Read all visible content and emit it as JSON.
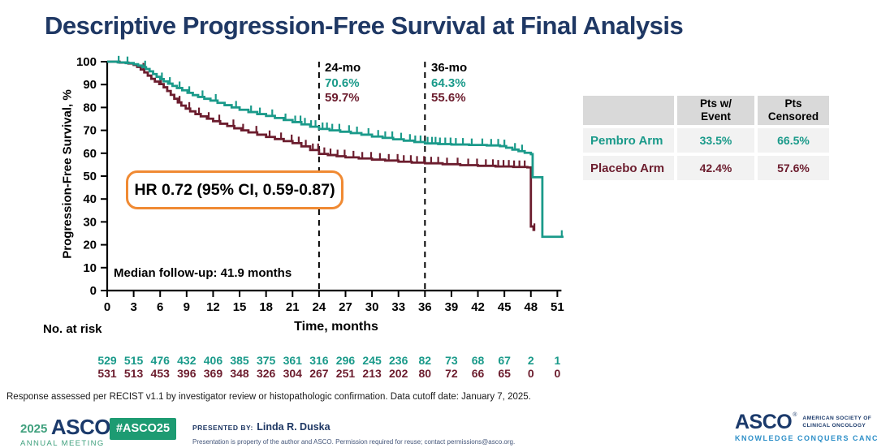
{
  "title": "Descriptive Progression-Free Survival at Final Analysis",
  "colors": {
    "title_navy": "#1F3864",
    "pembro_teal": "#1A9A8A",
    "placebo_maroon": "#6C1D2E",
    "hr_box_orange": "#F08A33",
    "table_header_gray": "#D9D9D9",
    "table_row_gray": "#F2F2F2",
    "footer_green": "#1D9B72",
    "asco_navy": "#1B3A6B",
    "tagline_blue": "#2D8FC8"
  },
  "chart_data": {
    "type": "line",
    "subtype": "kaplan-meier-step",
    "title": "",
    "xlabel": "Time, months",
    "ylabel": "Progression-Free Survival, %",
    "xlim": [
      0,
      51
    ],
    "ylim": [
      0,
      100
    ],
    "xticks": [
      0,
      3,
      6,
      9,
      12,
      15,
      18,
      21,
      24,
      27,
      30,
      33,
      36,
      39,
      42,
      45,
      48,
      51
    ],
    "yticks": [
      0,
      10,
      20,
      30,
      40,
      50,
      60,
      70,
      80,
      90,
      100
    ],
    "grid": false,
    "legend_position": "none",
    "hr_text": "HR 0.72 (95% CI, 0.59-0.87)",
    "median_followup": "Median follow-up: 41.9 months",
    "timepoints": [
      {
        "x": 24,
        "label": "24-mo",
        "pembro": "70.6%",
        "placebo": "59.7%"
      },
      {
        "x": 36,
        "label": "36-mo",
        "pembro": "64.3%",
        "placebo": "55.6%"
      }
    ],
    "series": [
      {
        "name": "Pembro Arm",
        "color": "#1A9A8A",
        "steps": [
          [
            0,
            100
          ],
          [
            1.2,
            99.7
          ],
          [
            2.1,
            99.4
          ],
          [
            3,
            98.9
          ],
          [
            3.5,
            98.3
          ],
          [
            4,
            97.6
          ],
          [
            4.4,
            96.8
          ],
          [
            4.8,
            95.8
          ],
          [
            5.2,
            94.6
          ],
          [
            5.6,
            93.4
          ],
          [
            6,
            92.4
          ],
          [
            6.4,
            91.4
          ],
          [
            6.9,
            90.4
          ],
          [
            7.4,
            89.4
          ],
          [
            7.9,
            88.5
          ],
          [
            8.5,
            87.5
          ],
          [
            9.1,
            86.4
          ],
          [
            9.7,
            85.4
          ],
          [
            10.3,
            84.6
          ],
          [
            11,
            83.8
          ],
          [
            11.7,
            83
          ],
          [
            12.5,
            82
          ],
          [
            13.3,
            81
          ],
          [
            14.1,
            80
          ],
          [
            15,
            79
          ],
          [
            16,
            78
          ],
          [
            17,
            77.1
          ],
          [
            18,
            76.3
          ],
          [
            19,
            75.4
          ],
          [
            20,
            74.5
          ],
          [
            21,
            73.6
          ],
          [
            22,
            72.6
          ],
          [
            23,
            71.6
          ],
          [
            24,
            70.6
          ],
          [
            25.2,
            70
          ],
          [
            26.4,
            69.4
          ],
          [
            27.6,
            68.8
          ],
          [
            28.8,
            68.1
          ],
          [
            30,
            67.3
          ],
          [
            31.2,
            66.7
          ],
          [
            32.4,
            66.1
          ],
          [
            33.6,
            65.5
          ],
          [
            34.8,
            64.9
          ],
          [
            36,
            64.3
          ],
          [
            37.5,
            64
          ],
          [
            39,
            63.8
          ],
          [
            41,
            63.6
          ],
          [
            43,
            63.4
          ],
          [
            44.5,
            63.1
          ],
          [
            45.2,
            62.4
          ],
          [
            45.9,
            61.6
          ],
          [
            46.6,
            60.9
          ],
          [
            47.3,
            60.2
          ],
          [
            48,
            59.6
          ],
          [
            48.2,
            49.5
          ],
          [
            49.3,
            23.5
          ],
          [
            51.7,
            23.5
          ]
        ],
        "censors": [
          1.3,
          2.3,
          4.3,
          6.2,
          7.1,
          8.2,
          9.3,
          10.8,
          12.3,
          14.6,
          16.3,
          17.3,
          18.7,
          20.2,
          21.3,
          21.9,
          22.4,
          23.1,
          23.6,
          24.4,
          24.9,
          25.5,
          26.3,
          27.4,
          28.3,
          29.6,
          30.7,
          31.5,
          32.3,
          33.3,
          34.3,
          34.9,
          35.5,
          36.3,
          36.8,
          37.2,
          37.7,
          38.3,
          38.9,
          39.5,
          40.3,
          41.3,
          42.5,
          43.5,
          44.3,
          45,
          46.2,
          47,
          51.5
        ]
      },
      {
        "name": "Placebo Arm",
        "color": "#6C1D2E",
        "steps": [
          [
            0,
            100
          ],
          [
            1.4,
            99.6
          ],
          [
            2.4,
            99.2
          ],
          [
            3,
            98.6
          ],
          [
            3.4,
            97.7
          ],
          [
            3.8,
            96.6
          ],
          [
            4.2,
            95.3
          ],
          [
            4.6,
            93.9
          ],
          [
            5,
            92.5
          ],
          [
            5.4,
            91.3
          ],
          [
            5.9,
            90.2
          ],
          [
            6.4,
            88.8
          ],
          [
            6.8,
            87.2
          ],
          [
            7.2,
            85.5
          ],
          [
            7.6,
            83.8
          ],
          [
            8,
            82.2
          ],
          [
            8.4,
            80.8
          ],
          [
            8.9,
            79.5
          ],
          [
            9.4,
            78.3
          ],
          [
            10,
            77.1
          ],
          [
            10.6,
            76.1
          ],
          [
            11.3,
            75.1
          ],
          [
            12,
            74
          ],
          [
            12.8,
            72.9
          ],
          [
            13.6,
            71.9
          ],
          [
            14.4,
            70.9
          ],
          [
            15.2,
            70
          ],
          [
            16,
            69.1
          ],
          [
            17,
            68.1
          ],
          [
            18,
            67.1
          ],
          [
            19,
            66.2
          ],
          [
            20,
            65.3
          ],
          [
            21,
            64.4
          ],
          [
            22,
            63
          ],
          [
            23,
            61.4
          ],
          [
            24,
            59.7
          ],
          [
            25,
            59.2
          ],
          [
            26,
            58.7
          ],
          [
            27,
            58.2
          ],
          [
            28.5,
            57.7
          ],
          [
            30,
            57.2
          ],
          [
            31.5,
            56.8
          ],
          [
            33,
            56.3
          ],
          [
            34.5,
            55.9
          ],
          [
            36,
            55.6
          ],
          [
            38,
            55.2
          ],
          [
            40,
            54.8
          ],
          [
            42,
            54.5
          ],
          [
            44,
            54.2
          ],
          [
            46,
            54
          ],
          [
            47.6,
            53.8
          ],
          [
            48,
            28
          ],
          [
            48.3,
            26.5
          ],
          [
            48.5,
            26.5
          ]
        ],
        "censors": [
          4.1,
          6.1,
          8.2,
          9.3,
          10.4,
          11.5,
          12.7,
          14.3,
          15.4,
          16.9,
          18.4,
          19.7,
          20.9,
          21.7,
          22.5,
          23.3,
          23.9,
          24.6,
          25.3,
          26.1,
          26.9,
          27.9,
          28.9,
          29.9,
          30.9,
          31.9,
          32.9,
          33.6,
          34.4,
          35.1,
          35.9,
          36.7,
          37.5,
          38.5,
          39.7,
          40.9,
          41.9,
          42.9,
          43.7,
          44.3,
          44.9,
          45.5,
          46.1,
          46.7,
          47.3,
          48.4
        ]
      }
    ],
    "at_risk": {
      "label": "No. at risk",
      "times": [
        0,
        3,
        6,
        9,
        12,
        15,
        18,
        21,
        24,
        27,
        30,
        33,
        36,
        39,
        42,
        45,
        48,
        51
      ],
      "rows": [
        {
          "name": "Pembro",
          "color": "#1A9A8A",
          "values": [
            529,
            515,
            476,
            432,
            406,
            385,
            375,
            361,
            316,
            296,
            245,
            236,
            82,
            73,
            68,
            67,
            2,
            1
          ]
        },
        {
          "name": "Placebo",
          "color": "#6C1D2E",
          "values": [
            531,
            513,
            453,
            396,
            369,
            348,
            326,
            304,
            267,
            251,
            213,
            202,
            80,
            72,
            66,
            65,
            0,
            0
          ]
        }
      ]
    }
  },
  "event_table": {
    "col_headers": [
      {
        "line1": "",
        "line2": ""
      },
      {
        "line1": "Pts w/",
        "line2": "Event"
      },
      {
        "line1": "Pts",
        "line2": "Censored"
      }
    ],
    "rows": [
      {
        "label": "Pembro Arm",
        "event": "33.5%",
        "censored": "66.5%"
      },
      {
        "label": "Placebo Arm",
        "event": "42.4%",
        "censored": "57.6%"
      }
    ]
  },
  "footnote": "Response assessed per RECIST v1.1 by investigator review or histopathologic confirmation. Data cutoff date: January 7, 2025.",
  "footer": {
    "meeting_year": "2025",
    "meeting_org": "ASCO",
    "registered_mark": "®",
    "meeting_name": "ANNUAL MEETING",
    "hashtag": "#ASCO25",
    "presented_by_label": "PRESENTED BY:",
    "presenter": "Linda R. Duska",
    "permission": "Presentation is property of the author and ASCO. Permission required for reuse; contact permissions@asco.org.",
    "asco_logo": "ASCO",
    "asco_sub1": "AMERICAN SOCIETY OF",
    "asco_sub2": "CLINICAL ONCOLOGY",
    "asco_tagline": "KNOWLEDGE CONQUERS CANCER"
  }
}
